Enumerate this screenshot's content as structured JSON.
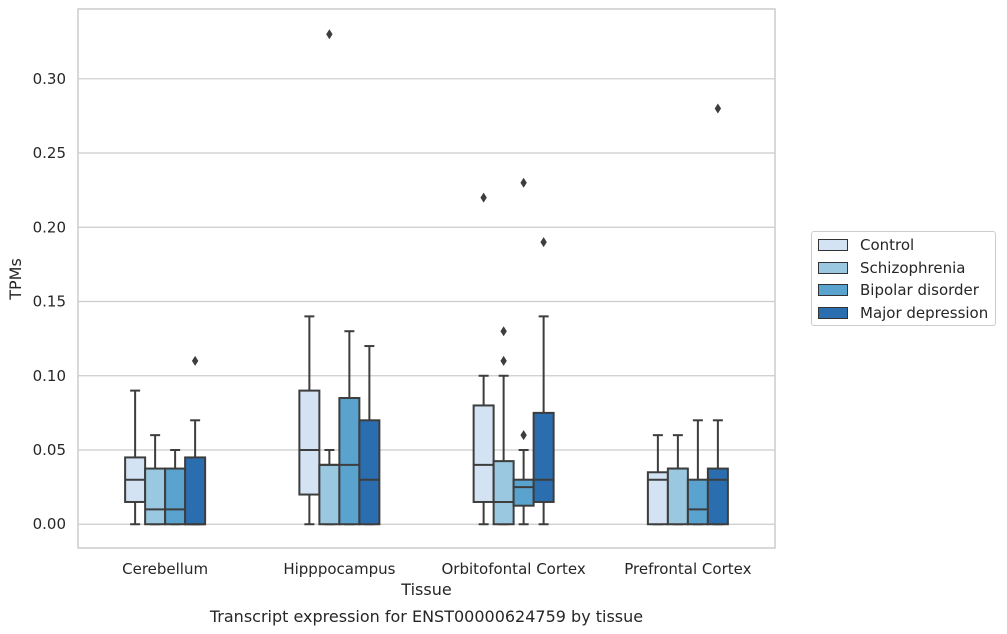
{
  "chart_data": {
    "type": "box",
    "title": "Transcript expression for ENST00000624759 by tissue",
    "xlabel": "Tissue",
    "ylabel": "TPMs",
    "ylim": [
      -0.016,
      0.347
    ],
    "yticks": [
      "0.00",
      "0.05",
      "0.10",
      "0.15",
      "0.20",
      "0.25",
      "0.30"
    ],
    "grid": true,
    "legend_position": "right",
    "categories": [
      "Cerebellum",
      "Hipppocampus",
      "Orbitofontal Cortex",
      "Prefrontal Cortex"
    ],
    "series": [
      {
        "name": "Control",
        "color": "#d3e3f3",
        "boxes": [
          {
            "whislo": 0.0,
            "q1": 0.015,
            "med": 0.03,
            "q3": 0.045,
            "whishi": 0.09,
            "fliers": []
          },
          {
            "whislo": 0.0,
            "q1": 0.02,
            "med": 0.05,
            "q3": 0.09,
            "whishi": 0.14,
            "fliers": []
          },
          {
            "whislo": 0.0,
            "q1": 0.015,
            "med": 0.04,
            "q3": 0.08,
            "whishi": 0.1,
            "fliers": [
              0.22
            ]
          },
          {
            "whislo": 0.0,
            "q1": 0.0,
            "med": 0.03,
            "q3": 0.035,
            "whishi": 0.06,
            "fliers": []
          }
        ]
      },
      {
        "name": "Schizophrenia",
        "color": "#9ac8e0",
        "boxes": [
          {
            "whislo": 0.0,
            "q1": 0.0,
            "med": 0.01,
            "q3": 0.0375,
            "whishi": 0.06,
            "fliers": []
          },
          {
            "whislo": 0.0,
            "q1": 0.0,
            "med": 0.04,
            "q3": 0.04,
            "whishi": 0.05,
            "fliers": [
              0.33
            ]
          },
          {
            "whislo": 0.0,
            "q1": 0.0,
            "med": 0.015,
            "q3": 0.0425,
            "whishi": 0.1,
            "fliers": [
              0.11,
              0.13
            ]
          },
          {
            "whislo": 0.0,
            "q1": 0.0,
            "med": 0.0375,
            "q3": 0.0375,
            "whishi": 0.06,
            "fliers": []
          }
        ]
      },
      {
        "name": "Bipolar disorder",
        "color": "#5ba3cf",
        "boxes": [
          {
            "whislo": 0.0,
            "q1": 0.0,
            "med": 0.01,
            "q3": 0.0375,
            "whishi": 0.05,
            "fliers": []
          },
          {
            "whislo": 0.0,
            "q1": 0.0,
            "med": 0.04,
            "q3": 0.085,
            "whishi": 0.13,
            "fliers": []
          },
          {
            "whislo": 0.0,
            "q1": 0.0125,
            "med": 0.025,
            "q3": 0.03,
            "whishi": 0.05,
            "fliers": [
              0.06,
              0.23
            ]
          },
          {
            "whislo": 0.0,
            "q1": 0.0,
            "med": 0.01,
            "q3": 0.03,
            "whishi": 0.07,
            "fliers": []
          }
        ]
      },
      {
        "name": "Major depression",
        "color": "#2a6eb0",
        "boxes": [
          {
            "whislo": 0.0,
            "q1": 0.0,
            "med": 0.0,
            "q3": 0.045,
            "whishi": 0.07,
            "fliers": [
              0.11
            ]
          },
          {
            "whislo": 0.0,
            "q1": 0.0,
            "med": 0.03,
            "q3": 0.07,
            "whishi": 0.12,
            "fliers": []
          },
          {
            "whislo": 0.0,
            "q1": 0.015,
            "med": 0.03,
            "q3": 0.075,
            "whishi": 0.14,
            "fliers": [
              0.19
            ]
          },
          {
            "whislo": 0.0,
            "q1": 0.0,
            "med": 0.03,
            "q3": 0.0375,
            "whishi": 0.07,
            "fliers": [
              0.28
            ]
          }
        ]
      }
    ]
  }
}
